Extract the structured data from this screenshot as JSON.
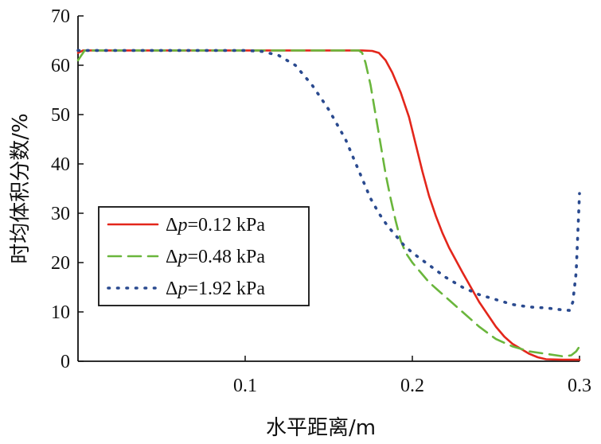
{
  "chart_data": {
    "type": "line",
    "title": "",
    "xlabel": "水平距离/m",
    "ylabel": "时均体积分数/%",
    "xlim": [
      0,
      0.3
    ],
    "ylim": [
      0,
      70
    ],
    "xticks": [
      0.1,
      0.2,
      0.3
    ],
    "xtick_labels": [
      "0.1",
      "0.2",
      "0.3"
    ],
    "yticks": [
      0,
      10,
      20,
      30,
      40,
      50,
      60,
      70
    ],
    "ytick_labels": [
      "0",
      "10",
      "20",
      "30",
      "40",
      "50",
      "60",
      "70"
    ],
    "grid": false,
    "legend_position": "center-left",
    "series": [
      {
        "name_prefix": "Δ",
        "name_var": "p",
        "name_suffix": "=0.12 kPa",
        "color": "#e3261b",
        "style": "solid",
        "x": [
          0,
          0.003,
          0.01,
          0.05,
          0.1,
          0.15,
          0.17,
          0.176,
          0.18,
          0.184,
          0.188,
          0.193,
          0.198,
          0.202,
          0.206,
          0.21,
          0.214,
          0.218,
          0.222,
          0.226,
          0.23,
          0.235,
          0.24,
          0.245,
          0.25,
          0.255,
          0.26,
          0.265,
          0.27,
          0.275,
          0.28,
          0.29,
          0.3
        ],
        "y": [
          62.5,
          63,
          63,
          63,
          63,
          63,
          63,
          62.9,
          62.5,
          61,
          58.5,
          54.5,
          49.5,
          44,
          38.5,
          33.5,
          29.5,
          26,
          23,
          20.5,
          18,
          15,
          12,
          9.5,
          7,
          5,
          3.5,
          2.5,
          1.5,
          0.8,
          0.4,
          0.3,
          0.3
        ]
      },
      {
        "name_prefix": "Δ",
        "name_var": "p",
        "name_suffix": "=0.48 kPa",
        "color": "#6ab63c",
        "style": "dashed",
        "x": [
          0,
          0.004,
          0.01,
          0.05,
          0.1,
          0.15,
          0.168,
          0.17,
          0.172,
          0.175,
          0.178,
          0.181,
          0.184,
          0.187,
          0.19,
          0.193,
          0.196,
          0.2,
          0.205,
          0.21,
          0.215,
          0.22,
          0.23,
          0.24,
          0.25,
          0.26,
          0.27,
          0.28,
          0.29,
          0.295,
          0.298,
          0.3
        ],
        "y": [
          61,
          63,
          63,
          63,
          63,
          63,
          63,
          62.5,
          60.5,
          56,
          50,
          44,
          38,
          33,
          28.5,
          24.5,
          22,
          20,
          18,
          16,
          14.5,
          13,
          10,
          7,
          4.5,
          3,
          2,
          1.5,
          1,
          1.2,
          2,
          3
        ]
      },
      {
        "name_prefix": "Δ",
        "name_var": "p",
        "name_suffix": "=1.92 kPa",
        "color": "#2a4a8f",
        "style": "dotted",
        "x": [
          0,
          0.02,
          0.05,
          0.08,
          0.1,
          0.11,
          0.12,
          0.13,
          0.14,
          0.15,
          0.16,
          0.165,
          0.17,
          0.175,
          0.18,
          0.185,
          0.19,
          0.195,
          0.2,
          0.21,
          0.22,
          0.23,
          0.24,
          0.25,
          0.26,
          0.27,
          0.28,
          0.29,
          0.294,
          0.296,
          0.298,
          0.3
        ],
        "y": [
          63,
          63,
          63,
          63,
          63,
          62.8,
          62,
          60,
          56,
          51,
          45,
          41,
          37,
          33,
          30,
          27.5,
          25.5,
          23.5,
          22,
          19.5,
          17,
          15,
          13.5,
          12.5,
          11.5,
          11,
          10.8,
          10.4,
          10.3,
          12,
          18,
          34
        ]
      }
    ]
  }
}
